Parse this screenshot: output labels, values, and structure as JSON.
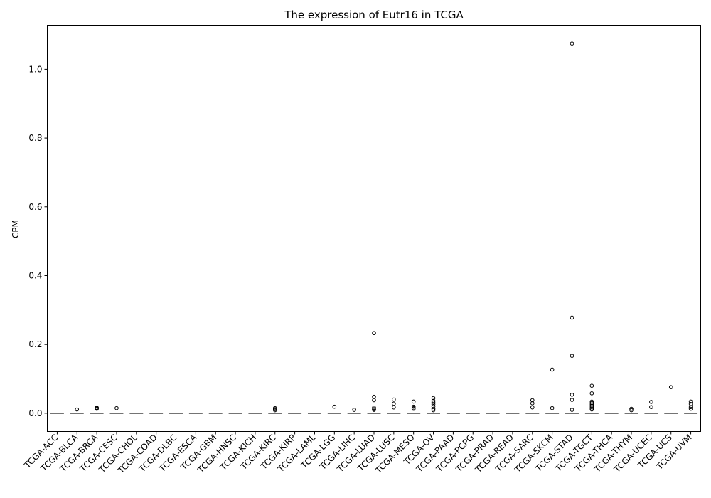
{
  "chart_data": {
    "type": "box",
    "title": "The expression of Eutr16 in TCGA",
    "xlabel": "",
    "ylabel": "CPM",
    "ylim": [
      -0.053,
      1.128
    ],
    "yticks": [
      0.0,
      0.2,
      0.4,
      0.6,
      0.8,
      1.0
    ],
    "ytick_labels": [
      "0.0",
      "0.2",
      "0.4",
      "0.6",
      "0.8",
      "1.0"
    ],
    "grid": false,
    "categories": [
      "TCGA-ACC",
      "TCGA-BLCA",
      "TCGA-BRCA",
      "TCGA-CESC",
      "TCGA-CHOL",
      "TCGA-COAD",
      "TCGA-DLBC",
      "TCGA-ESCA",
      "TCGA-GBM",
      "TCGA-HNSC",
      "TCGA-KICH",
      "TCGA-KIRC",
      "TCGA-KIRP",
      "TCGA-LAML",
      "TCGA-LGG",
      "TCGA-LIHC",
      "TCGA-LUAD",
      "TCGA-LUSC",
      "TCGA-MESO",
      "TCGA-OV",
      "TCGA-PAAD",
      "TCGA-PCPG",
      "TCGA-PRAD",
      "TCGA-READ",
      "TCGA-SARC",
      "TCGA-SKCM",
      "TCGA-STAD",
      "TCGA-TGCT",
      "TCGA-THCA",
      "TCGA-THYM",
      "TCGA-UCEC",
      "TCGA-UCS",
      "TCGA-UVM"
    ],
    "medians": [
      0,
      0,
      0,
      0,
      0,
      0,
      0,
      0,
      0,
      0,
      0,
      0,
      0,
      0,
      0,
      0,
      0,
      0,
      0,
      0,
      0,
      0,
      0,
      0,
      0,
      0,
      0,
      0,
      0,
      0,
      0,
      0,
      0
    ],
    "outliers": [
      [],
      [
        0.011
      ],
      [
        0.013,
        0.015,
        0.016
      ],
      [
        0.015
      ],
      [],
      [],
      [],
      [],
      [],
      [],
      [],
      [
        0.009,
        0.012,
        0.015
      ],
      [],
      [],
      [
        0.019
      ],
      [
        0.01
      ],
      [
        0.233,
        0.048,
        0.038,
        0.016,
        0.012,
        0.01
      ],
      [
        0.04,
        0.028,
        0.017
      ],
      [
        0.034,
        0.019,
        0.015,
        0.013
      ],
      [
        0.044,
        0.036,
        0.031,
        0.026,
        0.02,
        0.013,
        0.009
      ],
      [],
      [],
      [],
      [],
      [
        0.038,
        0.029,
        0.017
      ],
      [
        0.127,
        0.015
      ],
      [
        1.075,
        0.278,
        0.167,
        0.054,
        0.039,
        0.01
      ],
      [
        0.08,
        0.058,
        0.034,
        0.03,
        0.026,
        0.022,
        0.018,
        0.014,
        0.011
      ],
      [],
      [
        0.013,
        0.009
      ],
      [
        0.033,
        0.018
      ],
      [
        0.076
      ],
      [
        0.034,
        0.027,
        0.018,
        0.013
      ]
    ]
  }
}
